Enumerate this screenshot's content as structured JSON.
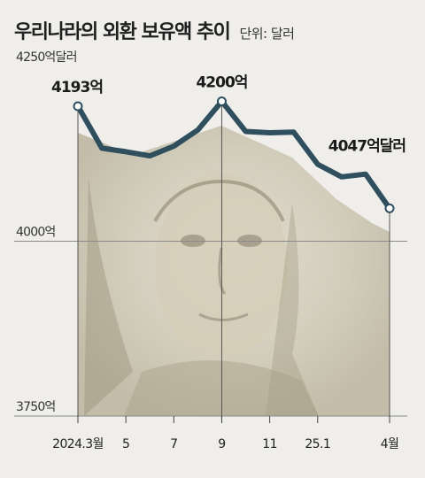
{
  "title": "우리나라의 외환 보유액 추이",
  "unit": "단위: 달러",
  "colors": {
    "line": "#2f4f5f",
    "marker_fill": "#ffffff",
    "gridline": "#8a8a8a",
    "background": "#efeeea",
    "photo_tint": "#c8c2b0"
  },
  "chart_data": {
    "type": "line",
    "x": [
      "2024.3",
      "2024.4",
      "2024.5",
      "2024.6",
      "2024.7",
      "2024.8",
      "2024.9",
      "2024.10",
      "2024.11",
      "2024.12",
      "2025.1",
      "2025.2",
      "2025.3",
      "2025.4"
    ],
    "values": [
      4193,
      4133,
      4128,
      4122,
      4136,
      4159,
      4200,
      4157,
      4155,
      4156,
      4110,
      4092,
      4096,
      4047
    ],
    "ylim": [
      3750,
      4250
    ],
    "yticks": [
      "4250억달러",
      "4000억",
      "3750억"
    ],
    "ytick_values": [
      4250,
      4000,
      3750
    ],
    "xticks": [
      {
        "label": "2024.3월",
        "index": 0
      },
      {
        "label": "5",
        "index": 2
      },
      {
        "label": "7",
        "index": 4
      },
      {
        "label": "9",
        "index": 6
      },
      {
        "label": "11",
        "index": 8
      },
      {
        "label": "25.1",
        "index": 10
      },
      {
        "label": "4월",
        "index": 13
      }
    ],
    "annotations": [
      {
        "label": "4193억",
        "index": 0
      },
      {
        "label": "4200억",
        "index": 6
      },
      {
        "label": "4047억달러",
        "index": 13
      }
    ],
    "markers_at": [
      0,
      6,
      13
    ],
    "vertical_lines_at": [
      0,
      6,
      13
    ],
    "grid": "horizontal at 4000"
  }
}
